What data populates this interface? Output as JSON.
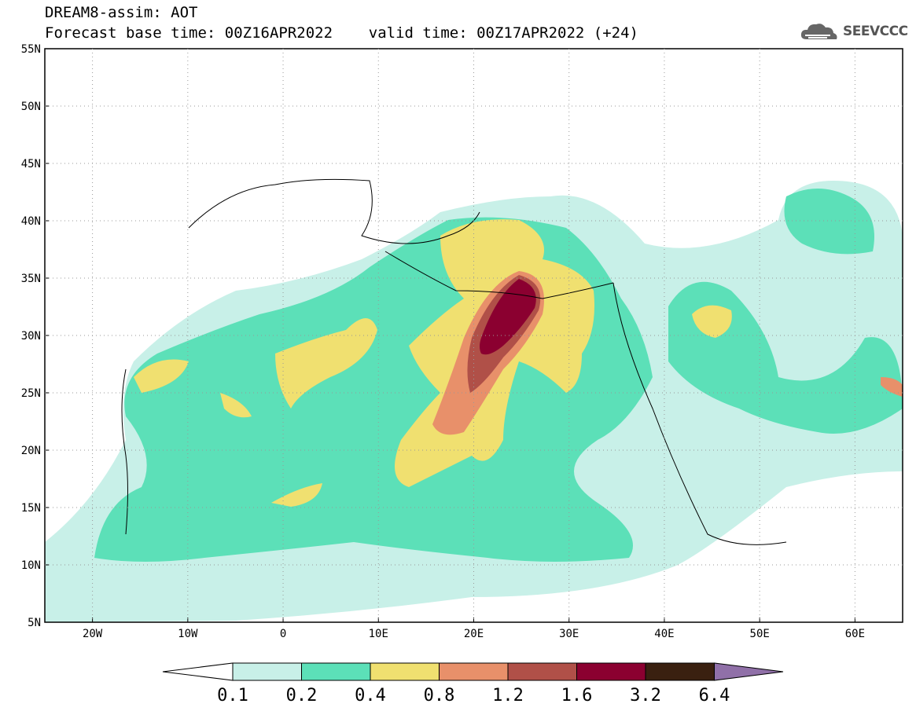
{
  "header": {
    "title_line1": "DREAM8-assim: AOT",
    "title_line2": "Forecast base time: 00Z16APR2022    valid time: 00Z17APR2022 (+24)",
    "logo_text": "SEEVCCC",
    "logo_icon": "cloud-logo-icon"
  },
  "map": {
    "variable": "AOT",
    "lon_range": [
      -25,
      65
    ],
    "lat_range": [
      5,
      55
    ],
    "lat_labels": [
      "55N",
      "50N",
      "45N",
      "40N",
      "35N",
      "30N",
      "25N",
      "20N",
      "15N",
      "10N",
      "5N"
    ],
    "lon_labels": [
      "20W",
      "10W",
      "0",
      "10E",
      "20E",
      "30E",
      "40E",
      "50E",
      "60E"
    ],
    "max_region": "eastern Libya / Mediterranean coast (~22-26E, 28-35N)"
  },
  "colorbar": {
    "labels": [
      "0.1",
      "0.2",
      "0.4",
      "0.8",
      "1.2",
      "1.6",
      "3.2",
      "6.4"
    ],
    "colors": [
      "#c8f0e8",
      "#5ce0b8",
      "#f0e070",
      "#e8906a",
      "#b05048",
      "#8b0030",
      "#3a2010",
      "#9070a8"
    ]
  }
}
